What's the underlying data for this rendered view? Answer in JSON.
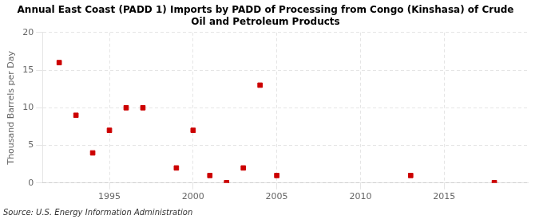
{
  "chart_data": {
    "type": "scatter",
    "title": "Annual East Coast (PADD 1) Imports by PADD of Processing from Congo (Kinshasa) of Crude\nOil and Petroleum Products",
    "ylabel": "Thousand Barrels per Day",
    "annotations": [
      "Source: U.S. Energy Information Administration"
    ],
    "x": [
      1992,
      1993,
      1994,
      1995,
      1996,
      1997,
      1999,
      2000,
      2001,
      2002,
      2003,
      2004,
      2005,
      2013,
      2018
    ],
    "values": [
      16,
      9,
      4,
      7,
      10,
      10,
      2,
      7,
      1,
      0.05,
      2,
      13,
      1,
      1,
      0.05
    ],
    "color": "#cc0000",
    "marker": "square",
    "xlim": [
      1991,
      2020
    ],
    "ylim": [
      0,
      20
    ],
    "xticks": [
      1995,
      2000,
      2005,
      2010,
      2015
    ],
    "yticks": [
      0,
      5,
      10,
      15,
      20
    ],
    "grid": true
  }
}
